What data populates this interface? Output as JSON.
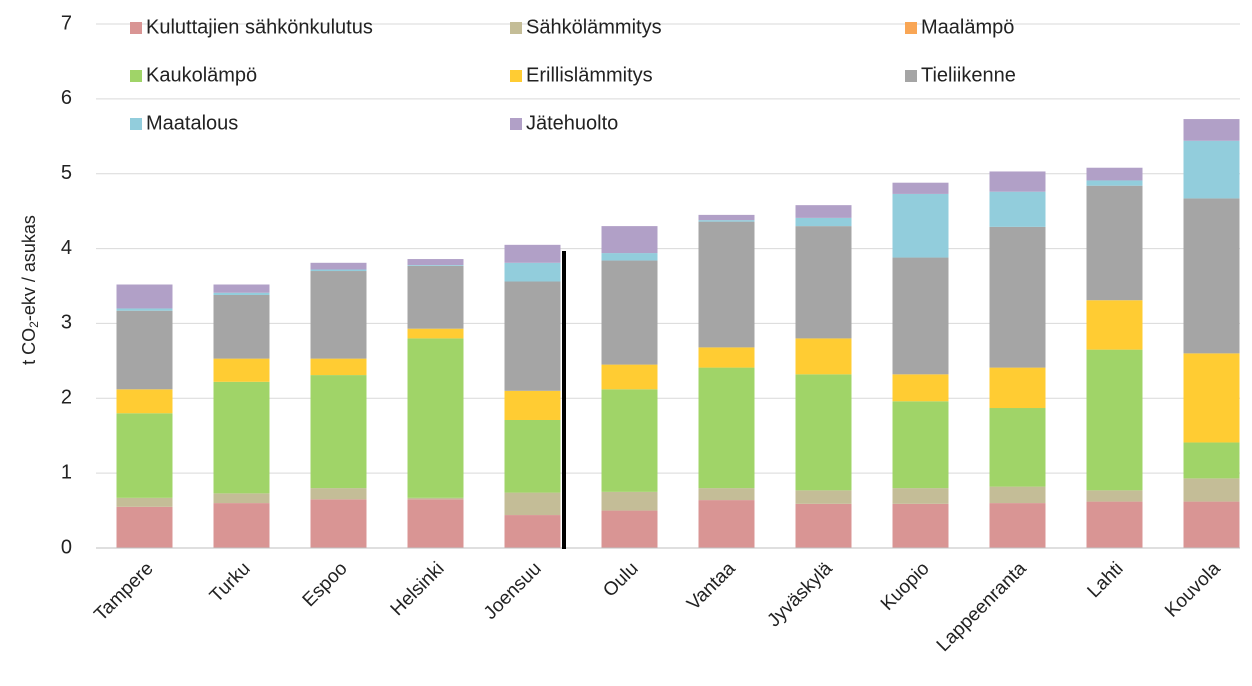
{
  "chart_data": {
    "type": "stacked_bar",
    "ylabel": {
      "prefix": "t CO",
      "sub": "2",
      "suffix": "-ekv / asukas"
    },
    "categories": [
      "Tampere",
      "Turku",
      "Espoo",
      "Helsinki",
      "Joensuu",
      "Oulu",
      "Vantaa",
      "Jyväskylä",
      "Kuopio",
      "Lappeenranta",
      "Lahti",
      "Kouvola"
    ],
    "series": [
      {
        "name": "Kuluttajien sähkönkulutus",
        "color": "#d99594",
        "values": [
          0.55,
          0.6,
          0.65,
          0.65,
          0.44,
          0.5,
          0.64,
          0.59,
          0.59,
          0.6,
          0.62,
          0.62
        ]
      },
      {
        "name": "Sähkölämmitys",
        "color": "#c4bd97",
        "values": [
          0.12,
          0.13,
          0.15,
          0.02,
          0.3,
          0.25,
          0.16,
          0.18,
          0.21,
          0.22,
          0.15,
          0.31
        ]
      },
      {
        "name": "Maalämpö",
        "color": "#f9a655",
        "values": [
          0,
          0,
          0,
          0,
          0,
          0,
          0,
          0,
          0,
          0,
          0,
          0
        ]
      },
      {
        "name": "Kaukolämpö",
        "color": "#a0d468",
        "values": [
          1.13,
          1.49,
          1.51,
          2.13,
          0.97,
          1.37,
          1.61,
          1.55,
          1.16,
          1.05,
          1.88,
          0.48
        ]
      },
      {
        "name": "Erillislämmitys",
        "color": "#ffcc33",
        "values": [
          0.32,
          0.31,
          0.22,
          0.13,
          0.39,
          0.33,
          0.27,
          0.48,
          0.36,
          0.54,
          0.66,
          1.19
        ]
      },
      {
        "name": "Tieliikenne",
        "color": "#a5a5a5",
        "values": [
          1.05,
          0.85,
          1.17,
          0.84,
          1.46,
          1.39,
          1.68,
          1.5,
          1.56,
          1.88,
          1.53,
          2.07
        ]
      },
      {
        "name": "Maatalous",
        "color": "#92cddc",
        "values": [
          0.03,
          0.03,
          0.02,
          0.01,
          0.25,
          0.1,
          0.02,
          0.11,
          0.85,
          0.47,
          0.07,
          0.77
        ]
      },
      {
        "name": "Jätehuolto",
        "color": "#b1a0c7",
        "values": [
          0.32,
          0.11,
          0.09,
          0.08,
          0.24,
          0.36,
          0.07,
          0.17,
          0.15,
          0.27,
          0.17,
          0.29
        ]
      }
    ],
    "ylim": [
      0,
      7
    ],
    "yticks": [
      0,
      1,
      2,
      3,
      4,
      5,
      6,
      7
    ],
    "grid": true
  }
}
